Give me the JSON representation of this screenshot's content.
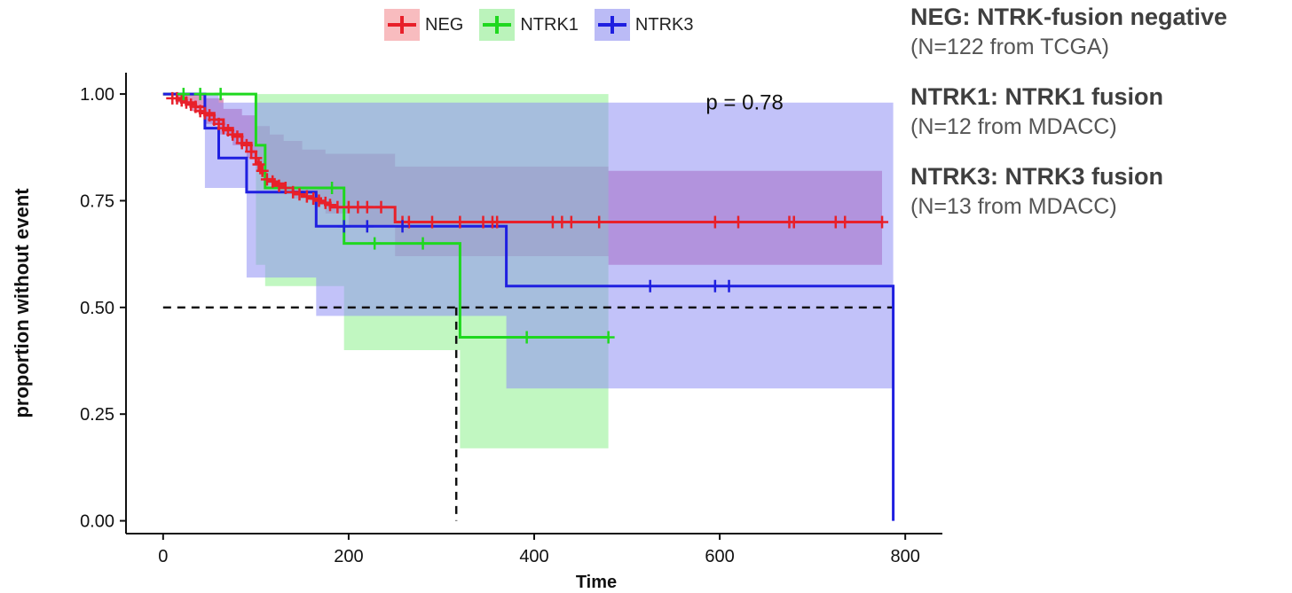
{
  "legend": {
    "items": [
      {
        "label": "NEG",
        "color": "#e8202a"
      },
      {
        "label": "NTRK1",
        "color": "#1fd81f"
      },
      {
        "label": "NTRK3",
        "color": "#1f1fe0"
      }
    ]
  },
  "notes": [
    {
      "title": "NEG: NTRK-fusion negative",
      "detail": "(N=122 from TCGA)"
    },
    {
      "title": "NTRK1: NTRK1 fusion",
      "detail": "(N=12 from MDACC)"
    },
    {
      "title": "NTRK3: NTRK3 fusion",
      "detail": "(N=13 from MDACC)"
    }
  ],
  "chart_data": {
    "type": "line",
    "chart_subtype": "kaplan-meier",
    "xlabel": "Time",
    "ylabel": "proportion without event",
    "xlim": [
      -40,
      840
    ],
    "ylim": [
      -0.03,
      1.05
    ],
    "xticks": [
      0,
      200,
      400,
      600,
      800
    ],
    "yticks": [
      0,
      0.25,
      0.5,
      0.75,
      1.0
    ],
    "xtick_labels": [
      "0",
      "200",
      "400",
      "600",
      "800"
    ],
    "ytick_labels": [
      "0.00",
      "0.25",
      "0.50",
      "0.75",
      "1.00"
    ],
    "grid": false,
    "annotation": "p = 0.78",
    "annotation_position": [
      585,
      0.98
    ],
    "median_line": {
      "y": 0.5,
      "x_start": 0,
      "x_end": 787,
      "drop_at": 316
    },
    "series": [
      {
        "name": "NEG",
        "color": "#e8202a",
        "band_color": "#c0448f",
        "steps": [
          [
            0,
            1.0
          ],
          [
            15,
            0.99
          ],
          [
            25,
            0.98
          ],
          [
            35,
            0.97
          ],
          [
            45,
            0.955
          ],
          [
            55,
            0.94
          ],
          [
            65,
            0.92
          ],
          [
            75,
            0.905
          ],
          [
            85,
            0.885
          ],
          [
            95,
            0.865
          ],
          [
            100,
            0.84
          ],
          [
            105,
            0.815
          ],
          [
            110,
            0.8
          ],
          [
            120,
            0.79
          ],
          [
            130,
            0.78
          ],
          [
            140,
            0.77
          ],
          [
            150,
            0.76
          ],
          [
            160,
            0.755
          ],
          [
            170,
            0.745
          ],
          [
            180,
            0.735
          ],
          [
            250,
            0.7
          ],
          [
            775,
            0.7
          ]
        ],
        "lower": [
          [
            0,
            1.0
          ],
          [
            15,
            0.98
          ],
          [
            30,
            0.96
          ],
          [
            45,
            0.93
          ],
          [
            60,
            0.905
          ],
          [
            75,
            0.88
          ],
          [
            90,
            0.85
          ],
          [
            100,
            0.82
          ],
          [
            110,
            0.79
          ],
          [
            125,
            0.77
          ],
          [
            140,
            0.755
          ],
          [
            160,
            0.74
          ],
          [
            175,
            0.72
          ],
          [
            200,
            0.69
          ],
          [
            250,
            0.62
          ],
          [
            480,
            0.62
          ],
          [
            480,
            0.6
          ],
          [
            775,
            0.6
          ]
        ],
        "upper": [
          [
            0,
            1.0
          ],
          [
            20,
            1.0
          ],
          [
            45,
            0.99
          ],
          [
            65,
            0.965
          ],
          [
            85,
            0.95
          ],
          [
            100,
            0.925
          ],
          [
            115,
            0.905
          ],
          [
            130,
            0.89
          ],
          [
            150,
            0.87
          ],
          [
            175,
            0.86
          ],
          [
            250,
            0.83
          ],
          [
            480,
            0.83
          ],
          [
            480,
            0.82
          ],
          [
            775,
            0.82
          ]
        ],
        "censors": [
          [
            10,
            0.99
          ],
          [
            15,
            0.99
          ],
          [
            20,
            0.985
          ],
          [
            25,
            0.98
          ],
          [
            30,
            0.975
          ],
          [
            35,
            0.97
          ],
          [
            40,
            0.96
          ],
          [
            45,
            0.955
          ],
          [
            50,
            0.95
          ],
          [
            55,
            0.94
          ],
          [
            60,
            0.93
          ],
          [
            65,
            0.92
          ],
          [
            70,
            0.915
          ],
          [
            75,
            0.905
          ],
          [
            80,
            0.9
          ],
          [
            85,
            0.885
          ],
          [
            90,
            0.88
          ],
          [
            95,
            0.865
          ],
          [
            100,
            0.85
          ],
          [
            103,
            0.835
          ],
          [
            107,
            0.82
          ],
          [
            112,
            0.8
          ],
          [
            118,
            0.795
          ],
          [
            125,
            0.785
          ],
          [
            132,
            0.78
          ],
          [
            140,
            0.77
          ],
          [
            147,
            0.765
          ],
          [
            155,
            0.76
          ],
          [
            162,
            0.755
          ],
          [
            168,
            0.75
          ],
          [
            175,
            0.745
          ],
          [
            180,
            0.74
          ],
          [
            188,
            0.735
          ],
          [
            200,
            0.735
          ],
          [
            210,
            0.735
          ],
          [
            220,
            0.735
          ],
          [
            235,
            0.735
          ],
          [
            258,
            0.7
          ],
          [
            265,
            0.7
          ],
          [
            290,
            0.7
          ],
          [
            320,
            0.7
          ],
          [
            345,
            0.7
          ],
          [
            355,
            0.7
          ],
          [
            360,
            0.7
          ],
          [
            420,
            0.7
          ],
          [
            430,
            0.7
          ],
          [
            440,
            0.7
          ],
          [
            470,
            0.7
          ],
          [
            595,
            0.7
          ],
          [
            620,
            0.7
          ],
          [
            675,
            0.7
          ],
          [
            680,
            0.7
          ],
          [
            725,
            0.7
          ],
          [
            735,
            0.7
          ],
          [
            775,
            0.7
          ]
        ]
      },
      {
        "name": "NTRK1",
        "color": "#1fd81f",
        "band_color": "#8ef08e",
        "steps": [
          [
            0,
            1.0
          ],
          [
            100,
            1.0
          ],
          [
            100,
            0.88
          ],
          [
            110,
            0.78
          ],
          [
            195,
            0.78
          ],
          [
            195,
            0.65
          ],
          [
            320,
            0.65
          ],
          [
            320,
            0.43
          ],
          [
            480,
            0.43
          ]
        ],
        "lower": [
          [
            0,
            1.0
          ],
          [
            100,
            1.0
          ],
          [
            100,
            0.6
          ],
          [
            110,
            0.55
          ],
          [
            195,
            0.55
          ],
          [
            195,
            0.4
          ],
          [
            320,
            0.4
          ],
          [
            320,
            0.17
          ],
          [
            480,
            0.17
          ]
        ],
        "upper": [
          [
            0,
            1.0
          ],
          [
            100,
            1.0
          ],
          [
            110,
            1.0
          ],
          [
            480,
            1.0
          ]
        ],
        "censors": [
          [
            22,
            1.0
          ],
          [
            40,
            1.0
          ],
          [
            62,
            1.0
          ],
          [
            182,
            0.78
          ],
          [
            228,
            0.65
          ],
          [
            280,
            0.65
          ],
          [
            392,
            0.43
          ],
          [
            480,
            0.43
          ]
        ]
      },
      {
        "name": "NTRK3",
        "color": "#1f1fe0",
        "band_color": "#9090f4",
        "steps": [
          [
            0,
            1.0
          ],
          [
            45,
            1.0
          ],
          [
            45,
            0.92
          ],
          [
            60,
            0.92
          ],
          [
            60,
            0.85
          ],
          [
            90,
            0.85
          ],
          [
            90,
            0.77
          ],
          [
            165,
            0.77
          ],
          [
            165,
            0.69
          ],
          [
            370,
            0.69
          ],
          [
            370,
            0.55
          ],
          [
            787,
            0.55
          ],
          [
            787,
            0.0
          ]
        ],
        "lower": [
          [
            0,
            1.0
          ],
          [
            45,
            1.0
          ],
          [
            45,
            0.78
          ],
          [
            90,
            0.78
          ],
          [
            90,
            0.57
          ],
          [
            165,
            0.57
          ],
          [
            165,
            0.48
          ],
          [
            370,
            0.48
          ],
          [
            370,
            0.31
          ],
          [
            787,
            0.31
          ]
        ],
        "upper": [
          [
            0,
            1.0
          ],
          [
            45,
            1.0
          ],
          [
            60,
            1.0
          ],
          [
            60,
            0.98
          ],
          [
            787,
            0.98
          ]
        ],
        "censors": [
          [
            195,
            0.69
          ],
          [
            220,
            0.69
          ],
          [
            258,
            0.69
          ],
          [
            525,
            0.55
          ],
          [
            595,
            0.55
          ],
          [
            610,
            0.55
          ]
        ]
      }
    ]
  }
}
